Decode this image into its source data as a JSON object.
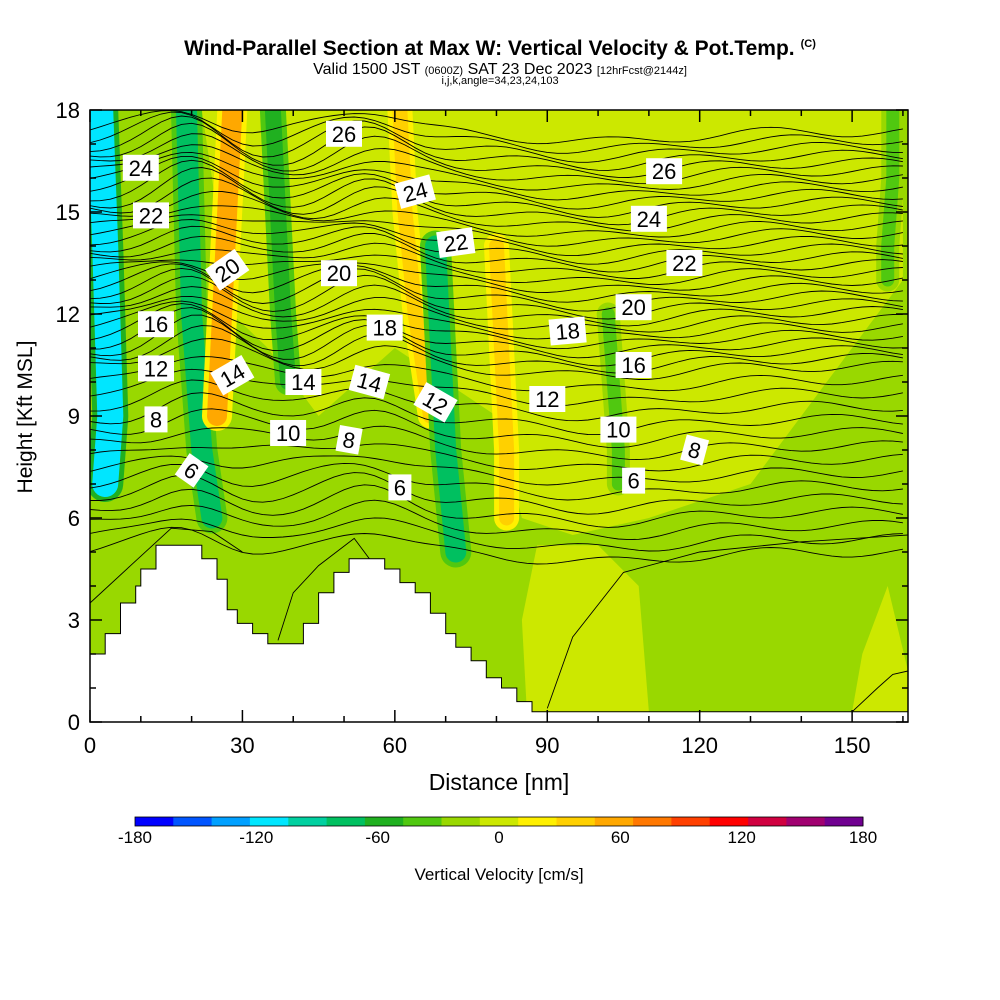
{
  "header": {
    "title": "Wind-Parallel Section at Max W: Vertical Velocity & Pot.Temp.",
    "title_unit": "(C)",
    "valid_prefix": "Valid 1500 JST",
    "valid_zulu": "(0600Z)",
    "valid_date": "SAT 23 Dec 2023",
    "forecast": "[12hrFcst@2144z]",
    "indices": "i,j,k,angle=34,23,24,103"
  },
  "chart_data": {
    "type": "heatmap",
    "title": "Wind-Parallel Section at Max W: Vertical Velocity & Pot.Temp.",
    "xlabel": "Distance [nm]",
    "ylabel": "Height [Kft MSL]",
    "xlim": [
      0,
      161
    ],
    "ylim": [
      0,
      18
    ],
    "x_ticks": [
      "0",
      "30",
      "60",
      "90",
      "120",
      "150"
    ],
    "y_ticks": [
      "0",
      "3",
      "6",
      "9",
      "12",
      "15",
      "18"
    ],
    "colorbar": {
      "label": "Vertical Velocity [cm/s]",
      "min": -180,
      "max": 180,
      "step": 20,
      "tick_labels": [
        "-180",
        "-120",
        "-60",
        "0",
        "60",
        "120",
        "180"
      ],
      "colors": [
        "#0000ff",
        "#0055ff",
        "#00a0ff",
        "#00e6ff",
        "#00d0a0",
        "#00c060",
        "#20b020",
        "#50c810",
        "#99d800",
        "#cce800",
        "#fff000",
        "#ffd000",
        "#ffa800",
        "#ff7800",
        "#ff4000",
        "#ff0000",
        "#d00040",
        "#a00070",
        "#700090"
      ]
    },
    "theta_contour_labels": [
      {
        "x": 10,
        "y": 16.3,
        "text": "24",
        "rot": 0
      },
      {
        "x": 50,
        "y": 17.3,
        "text": "26",
        "rot": 0
      },
      {
        "x": 113,
        "y": 16.2,
        "text": "26",
        "rot": 0
      },
      {
        "x": 12,
        "y": 14.9,
        "text": "22",
        "rot": 0
      },
      {
        "x": 64,
        "y": 15.6,
        "text": "24",
        "rot": -15
      },
      {
        "x": 110,
        "y": 14.8,
        "text": "24",
        "rot": 0
      },
      {
        "x": 72,
        "y": 14.1,
        "text": "22",
        "rot": -8
      },
      {
        "x": 117,
        "y": 13.5,
        "text": "22",
        "rot": 0
      },
      {
        "x": 27,
        "y": 13.3,
        "text": "20",
        "rot": -35
      },
      {
        "x": 49,
        "y": 13.2,
        "text": "20",
        "rot": 0
      },
      {
        "x": 107,
        "y": 12.2,
        "text": "20",
        "rot": 0
      },
      {
        "x": 13,
        "y": 11.7,
        "text": "16",
        "rot": 0
      },
      {
        "x": 58,
        "y": 11.6,
        "text": "18",
        "rot": 0
      },
      {
        "x": 94,
        "y": 11.5,
        "text": "18",
        "rot": -5
      },
      {
        "x": 107,
        "y": 10.5,
        "text": "16",
        "rot": 0
      },
      {
        "x": 13,
        "y": 10.4,
        "text": "12",
        "rot": 0
      },
      {
        "x": 28,
        "y": 10.2,
        "text": "14",
        "rot": -30
      },
      {
        "x": 42,
        "y": 10.0,
        "text": "14",
        "rot": 0
      },
      {
        "x": 55,
        "y": 10.0,
        "text": "14",
        "rot": 15
      },
      {
        "x": 68,
        "y": 9.4,
        "text": "12",
        "rot": 30
      },
      {
        "x": 90,
        "y": 9.5,
        "text": "12",
        "rot": 0
      },
      {
        "x": 13,
        "y": 8.9,
        "text": "8",
        "rot": 0
      },
      {
        "x": 39,
        "y": 8.5,
        "text": "10",
        "rot": 0
      },
      {
        "x": 104,
        "y": 8.6,
        "text": "10",
        "rot": 0
      },
      {
        "x": 51,
        "y": 8.3,
        "text": "8",
        "rot": 10
      },
      {
        "x": 119,
        "y": 8.0,
        "text": "8",
        "rot": 15
      },
      {
        "x": 20,
        "y": 7.4,
        "text": "6",
        "rot": 35
      },
      {
        "x": 61,
        "y": 6.9,
        "text": "6",
        "rot": 0
      },
      {
        "x": 107,
        "y": 7.1,
        "text": "6",
        "rot": 0
      }
    ],
    "velocity_features": [
      {
        "x": [
          2,
          3,
          4,
          3
        ],
        "y": [
          18,
          14,
          9,
          7
        ],
        "value": -110
      },
      {
        "x": [
          19,
          20,
          22,
          24
        ],
        "y": [
          18,
          12,
          8,
          6
        ],
        "value": -80
      },
      {
        "x": [
          28,
          27,
          26,
          25
        ],
        "y": [
          18,
          15,
          12,
          9
        ],
        "value": 70
      },
      {
        "x": [
          36,
          37,
          38,
          39
        ],
        "y": [
          18,
          15,
          12,
          10
        ],
        "value": -50
      },
      {
        "x": [
          61,
          62,
          64,
          67
        ],
        "y": [
          18,
          15,
          12,
          9
        ],
        "value": 40
      },
      {
        "x": [
          68,
          69,
          70,
          72
        ],
        "y": [
          14,
          11,
          8,
          5
        ],
        "value": -80
      },
      {
        "x": [
          80,
          81,
          82,
          82
        ],
        "y": [
          14,
          11,
          8,
          6
        ],
        "value": 40
      },
      {
        "x": [
          102,
          103,
          104,
          104
        ],
        "y": [
          12,
          10,
          8,
          7
        ],
        "value": -30
      },
      {
        "x": [
          158,
          158,
          157,
          157
        ],
        "y": [
          18,
          16,
          14,
          13
        ],
        "value": -30
      }
    ],
    "terrain_kft": [
      [
        0,
        2.0
      ],
      [
        3,
        2.0
      ],
      [
        3,
        2.6
      ],
      [
        6,
        2.6
      ],
      [
        6,
        3.5
      ],
      [
        9,
        3.5
      ],
      [
        9,
        4.0
      ],
      [
        10,
        4.0
      ],
      [
        10,
        4.5
      ],
      [
        13,
        4.5
      ],
      [
        13,
        5.2
      ],
      [
        22,
        5.2
      ],
      [
        22,
        4.8
      ],
      [
        25,
        4.8
      ],
      [
        25,
        4.2
      ],
      [
        27,
        4.2
      ],
      [
        27,
        3.3
      ],
      [
        29,
        3.3
      ],
      [
        29,
        2.9
      ],
      [
        32,
        2.9
      ],
      [
        32,
        2.6
      ],
      [
        35,
        2.6
      ],
      [
        35,
        2.3
      ],
      [
        42,
        2.3
      ],
      [
        42,
        2.9
      ],
      [
        45,
        2.9
      ],
      [
        45,
        3.8
      ],
      [
        48,
        3.8
      ],
      [
        48,
        4.4
      ],
      [
        51,
        4.4
      ],
      [
        51,
        4.8
      ],
      [
        58,
        4.8
      ],
      [
        58,
        4.5
      ],
      [
        61,
        4.5
      ],
      [
        61,
        4.1
      ],
      [
        64,
        4.1
      ],
      [
        64,
        3.8
      ],
      [
        67,
        3.8
      ],
      [
        67,
        3.2
      ],
      [
        70,
        3.2
      ],
      [
        70,
        2.6
      ],
      [
        72,
        2.6
      ],
      [
        72,
        2.2
      ],
      [
        75,
        2.2
      ],
      [
        75,
        1.8
      ],
      [
        78,
        1.8
      ],
      [
        78,
        1.3
      ],
      [
        81,
        1.3
      ],
      [
        81,
        1.0
      ],
      [
        84,
        1.0
      ],
      [
        84,
        0.6
      ],
      [
        87,
        0.6
      ],
      [
        87,
        0.3
      ],
      [
        161,
        0.3
      ],
      [
        161,
        0
      ]
    ]
  }
}
